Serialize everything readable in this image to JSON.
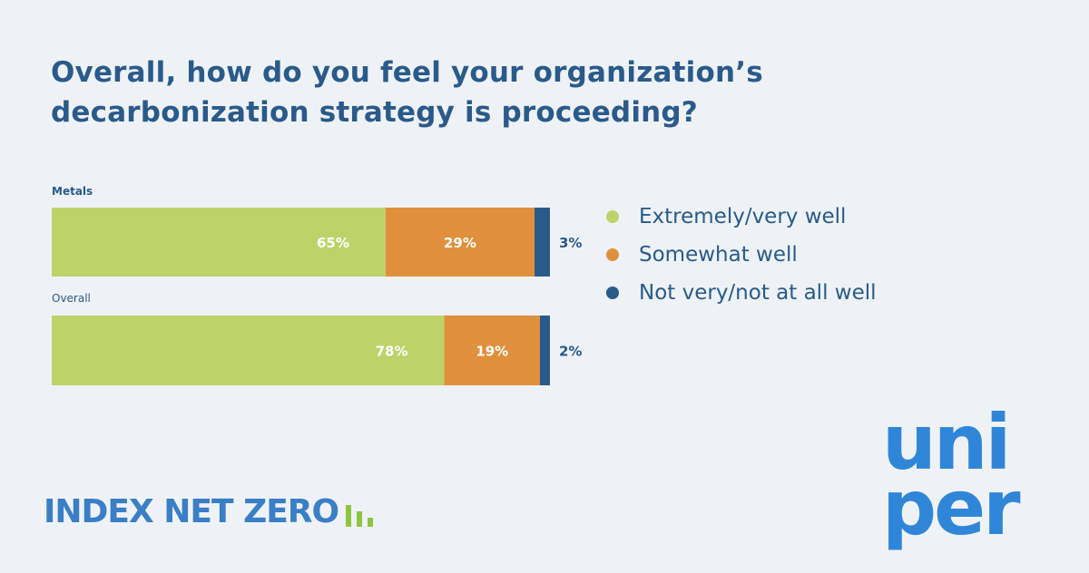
{
  "title": "Overall, how do you feel your organization’s decarbonization strategy is proceeding?",
  "chart_data": {
    "type": "bar",
    "orientation": "horizontal",
    "stacked": true,
    "categories": [
      "Metals",
      "Overall"
    ],
    "series": [
      {
        "name": "Extremely/very well",
        "values": [
          65,
          78
        ],
        "color": "#bdd36a"
      },
      {
        "name": "Somewhat well",
        "values": [
          29,
          19
        ],
        "color": "#e0903c"
      },
      {
        "name": "Not very/not at all well",
        "values": [
          3,
          2
        ],
        "color": "#2a5a8a"
      }
    ],
    "value_labels": [
      [
        "65%",
        "29%",
        "3%"
      ],
      [
        "78%",
        "19%",
        "2%"
      ]
    ],
    "unit": "%",
    "legend_position": "right",
    "grid": false
  },
  "legend": [
    {
      "label": "Extremely/very well",
      "color": "#bdd36a"
    },
    {
      "label": "Somewhat well",
      "color": "#e0903c"
    },
    {
      "label": "Not very/not at all well",
      "color": "#2a5a8a"
    }
  ],
  "brand": {
    "index_logo": "INDEX NET ZERO",
    "company_logo": "uniper",
    "index_color": "#3a7ec6",
    "accent_color": "#8cc63f",
    "company_color": "#2f86d9"
  }
}
